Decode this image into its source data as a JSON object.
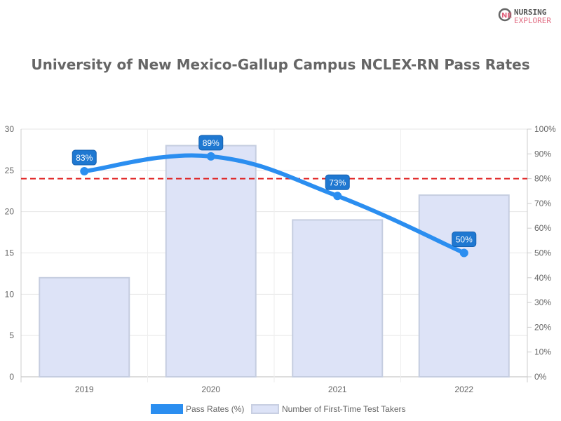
{
  "logo": {
    "line1": "NURSING",
    "line2": "EXPLORER"
  },
  "chart_data": {
    "type": "bar+line",
    "title": "University of New Mexico-Gallup Campus NCLEX-RN Pass Rates",
    "categories": [
      "2019",
      "2020",
      "2021",
      "2022"
    ],
    "series": [
      {
        "name": "Pass Rates (%)",
        "type": "line",
        "axis": "right",
        "values": [
          83,
          89,
          73,
          50
        ],
        "labels": [
          "83%",
          "89%",
          "73%",
          "50%"
        ],
        "color": "#2b8ef0"
      },
      {
        "name": "Number of First-Time Test Takers",
        "type": "bar",
        "axis": "left",
        "values": [
          12,
          28,
          19,
          22
        ],
        "color": "#dde3f7",
        "border": "#c5cde0"
      }
    ],
    "left_axis": {
      "ylim": [
        0,
        30
      ],
      "ticks": [
        "0",
        "5",
        "10",
        "15",
        "20",
        "25",
        "30"
      ]
    },
    "right_axis": {
      "ylim": [
        0,
        100
      ],
      "ticks": [
        "0%",
        "10%",
        "20%",
        "30%",
        "40%",
        "50%",
        "60%",
        "70%",
        "80%",
        "90%",
        "100%"
      ]
    },
    "reference_line": {
      "value": 80,
      "axis": "right",
      "color": "#e02020",
      "style": "dashed"
    },
    "grid": true,
    "legend": "bottom"
  }
}
